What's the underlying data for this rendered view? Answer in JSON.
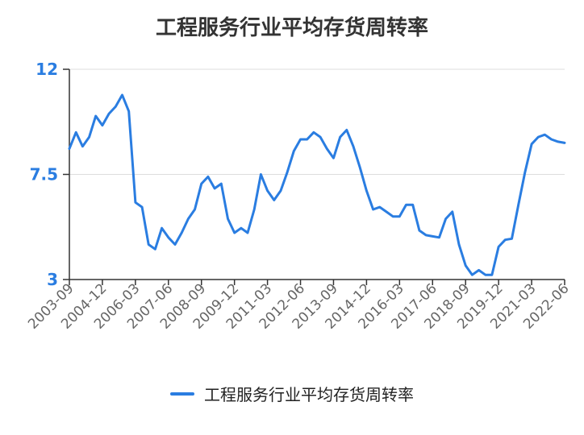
{
  "chart_data": {
    "type": "line",
    "title": "工程服务行业平均存货周转率",
    "xlabel": "",
    "ylabel": "",
    "ylim": [
      3,
      12
    ],
    "yticks": [
      3,
      7.5,
      12
    ],
    "ytick_labels": [
      "3",
      "7.5",
      "12"
    ],
    "xtick_labels": [
      "2003-09",
      "2004-12",
      "2006-03",
      "2007-06",
      "2008-09",
      "2009-12",
      "2011-03",
      "2012-06",
      "2013-09",
      "2014-12",
      "2016-03",
      "2017-06",
      "2018-09",
      "2019-12",
      "2021-03",
      "2022-06"
    ],
    "grid": true,
    "legend_position": "bottom",
    "series": [
      {
        "name": "工程服务行业平均存货周转率",
        "color": "#2a7de1",
        "values": [
          8.6,
          9.3,
          8.7,
          9.1,
          10.0,
          9.6,
          10.1,
          10.4,
          10.9,
          10.2,
          6.3,
          6.1,
          4.5,
          4.3,
          5.2,
          4.8,
          4.5,
          5.0,
          5.6,
          6.0,
          7.1,
          7.4,
          6.9,
          7.1,
          5.6,
          5.0,
          5.2,
          5.0,
          6.0,
          7.5,
          6.8,
          6.4,
          6.8,
          7.6,
          8.5,
          9.0,
          9.0,
          9.3,
          9.1,
          8.6,
          8.2,
          9.1,
          9.4,
          8.7,
          7.8,
          6.8,
          6.0,
          6.1,
          5.9,
          5.7,
          5.7,
          6.2,
          6.2,
          5.1,
          4.9,
          4.85,
          4.8,
          5.6,
          5.9,
          4.5,
          3.6,
          3.2,
          3.4,
          3.2,
          3.2,
          4.4,
          4.7,
          4.75,
          6.2,
          7.6,
          8.8,
          9.1,
          9.2,
          9.0,
          8.9,
          8.85
        ]
      }
    ]
  }
}
